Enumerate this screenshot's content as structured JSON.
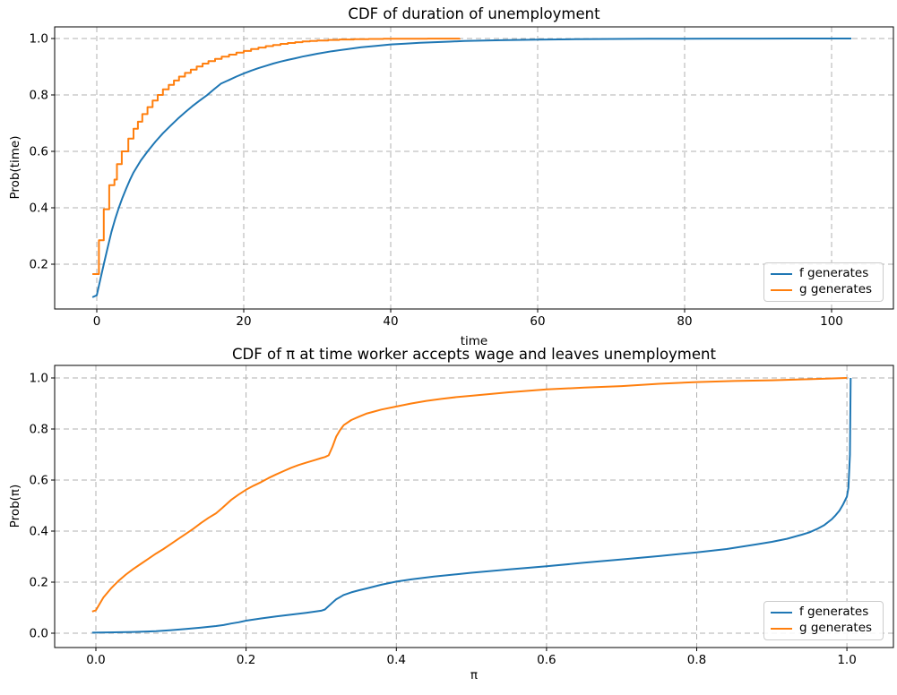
{
  "colors": {
    "f_series": "#1f77b4",
    "g_series": "#ff7f0e",
    "grid": "#b0b0b0",
    "spine": "#000000",
    "legend_border": "#cccccc",
    "background": "#ffffff"
  },
  "chart_data": [
    {
      "type": "line",
      "title": "CDF of duration of unemployment",
      "xlabel": "time",
      "ylabel": "Prob(time)",
      "grid": true,
      "xlim": [
        -5.73,
        108.42
      ],
      "ylim": [
        0.0413,
        1.0413
      ],
      "xticks": [
        {
          "value": 0,
          "label": "0"
        },
        {
          "value": 20,
          "label": "20"
        },
        {
          "value": 40,
          "label": "40"
        },
        {
          "value": 60,
          "label": "60"
        },
        {
          "value": 80,
          "label": "80"
        },
        {
          "value": 100,
          "label": "100"
        }
      ],
      "yticks": [
        {
          "value": 0.2,
          "label": "0.2"
        },
        {
          "value": 0.4,
          "label": "0.4"
        },
        {
          "value": 0.6,
          "label": "0.6"
        },
        {
          "value": 0.8,
          "label": "0.8"
        },
        {
          "value": 1.0,
          "label": "1.0"
        }
      ],
      "legend": [
        {
          "label": "f generates",
          "color": "#1f77b4"
        },
        {
          "label": "g generates",
          "color": "#ff7f0e"
        }
      ],
      "legend_position": "lower right",
      "series": [
        {
          "name": "f generates",
          "color": "#1f77b4",
          "mode": "line",
          "points": [
            [
              -0.6,
              0.083
            ],
            [
              0,
              0.09
            ],
            [
              0.5,
              0.148
            ],
            [
              1,
              0.205
            ],
            [
              1.5,
              0.261
            ],
            [
              2,
              0.315
            ],
            [
              2.5,
              0.36
            ],
            [
              3,
              0.4
            ],
            [
              3.5,
              0.436
            ],
            [
              4,
              0.468
            ],
            [
              4.5,
              0.498
            ],
            [
              5,
              0.525
            ],
            [
              6,
              0.568
            ],
            [
              7,
              0.603
            ],
            [
              8,
              0.635
            ],
            [
              9,
              0.664
            ],
            [
              10,
              0.69
            ],
            [
              11,
              0.715
            ],
            [
              12,
              0.738
            ],
            [
              13,
              0.76
            ],
            [
              14,
              0.78
            ],
            [
              15,
              0.799
            ],
            [
              16,
              0.821
            ],
            [
              16.9,
              0.84
            ],
            [
              18,
              0.853
            ],
            [
              19,
              0.865
            ],
            [
              20,
              0.876
            ],
            [
              21,
              0.886
            ],
            [
              22,
              0.895
            ],
            [
              23,
              0.903
            ],
            [
              24,
              0.911
            ],
            [
              25,
              0.918
            ],
            [
              26,
              0.924
            ],
            [
              27,
              0.93
            ],
            [
              28,
              0.936
            ],
            [
              29,
              0.941
            ],
            [
              30,
              0.946
            ],
            [
              32,
              0.955
            ],
            [
              34,
              0.962
            ],
            [
              36,
              0.969
            ],
            [
              38,
              0.974
            ],
            [
              40,
              0.979
            ],
            [
              42,
              0.982
            ],
            [
              44,
              0.985
            ],
            [
              46,
              0.987
            ],
            [
              48,
              0.989
            ],
            [
              50,
              0.991
            ],
            [
              55,
              0.994
            ],
            [
              60,
              0.996
            ],
            [
              65,
              0.9975
            ],
            [
              70,
              0.9985
            ],
            [
              75,
              0.999
            ],
            [
              80,
              0.9993
            ],
            [
              85,
              0.9996
            ],
            [
              90,
              0.9998
            ],
            [
              102.7,
              1.0
            ]
          ]
        },
        {
          "name": "g generates",
          "color": "#ff7f0e",
          "mode": "step",
          "points": [
            [
              -0.6,
              0.165
            ],
            [
              0.3,
              0.285
            ],
            [
              0.95,
              0.395
            ],
            [
              1.7,
              0.48
            ],
            [
              2.4,
              0.5
            ],
            [
              2.75,
              0.555
            ],
            [
              3.4,
              0.6
            ],
            [
              4.3,
              0.645
            ],
            [
              5,
              0.68
            ],
            [
              5.6,
              0.705
            ],
            [
              6.2,
              0.732
            ],
            [
              6.9,
              0.757
            ],
            [
              7.6,
              0.78
            ],
            [
              8.3,
              0.8
            ],
            [
              9,
              0.82
            ],
            [
              9.8,
              0.836
            ],
            [
              10.5,
              0.851
            ],
            [
              11.2,
              0.865
            ],
            [
              12,
              0.878
            ],
            [
              12.8,
              0.89
            ],
            [
              13.6,
              0.901
            ],
            [
              14.4,
              0.911
            ],
            [
              15.2,
              0.92
            ],
            [
              16.1,
              0.928
            ],
            [
              17,
              0.936
            ],
            [
              18,
              0.943
            ],
            [
              19,
              0.95
            ],
            [
              20,
              0.956
            ],
            [
              21,
              0.963
            ],
            [
              22,
              0.968
            ],
            [
              23,
              0.973
            ],
            [
              24,
              0.977
            ],
            [
              25,
              0.981
            ],
            [
              26,
              0.984
            ],
            [
              27,
              0.987
            ],
            [
              28,
              0.9895
            ],
            [
              29,
              0.9915
            ],
            [
              30,
              0.993
            ],
            [
              31.5,
              0.995
            ],
            [
              33,
              0.9965
            ],
            [
              35,
              0.9975
            ],
            [
              37,
              0.9985
            ],
            [
              39,
              0.999
            ],
            [
              42,
              0.9995
            ],
            [
              45,
              0.9998
            ],
            [
              49.4,
              1.0
            ]
          ]
        }
      ]
    },
    {
      "type": "line",
      "title": "CDF of π at time worker accepts wage and leaves unemployment",
      "xlabel": "π",
      "ylabel": "Prob(π)",
      "grid": true,
      "xlim": [
        -0.0549,
        1.0619
      ],
      "ylim": [
        -0.0561,
        1.0491
      ],
      "xticks": [
        {
          "value": 0.0,
          "label": "0.0"
        },
        {
          "value": 0.2,
          "label": "0.2"
        },
        {
          "value": 0.4,
          "label": "0.4"
        },
        {
          "value": 0.6,
          "label": "0.6"
        },
        {
          "value": 0.8,
          "label": "0.8"
        },
        {
          "value": 1.0,
          "label": "1.0"
        }
      ],
      "yticks": [
        {
          "value": 0.0,
          "label": "0.0"
        },
        {
          "value": 0.2,
          "label": "0.2"
        },
        {
          "value": 0.4,
          "label": "0.4"
        },
        {
          "value": 0.6,
          "label": "0.6"
        },
        {
          "value": 0.8,
          "label": "0.8"
        },
        {
          "value": 1.0,
          "label": "1.0"
        }
      ],
      "legend": [
        {
          "label": "f generates",
          "color": "#1f77b4"
        },
        {
          "label": "g generates",
          "color": "#ff7f0e"
        }
      ],
      "legend_position": "lower right",
      "series": [
        {
          "name": "f generates",
          "color": "#1f77b4",
          "mode": "line",
          "points": [
            [
              -0.005,
              0.002
            ],
            [
              0.05,
              0.005
            ],
            [
              0.08,
              0.008
            ],
            [
              0.1,
              0.012
            ],
            [
              0.12,
              0.017
            ],
            [
              0.14,
              0.022
            ],
            [
              0.16,
              0.028
            ],
            [
              0.17,
              0.032
            ],
            [
              0.18,
              0.038
            ],
            [
              0.19,
              0.043
            ],
            [
              0.2,
              0.049
            ],
            [
              0.22,
              0.058
            ],
            [
              0.24,
              0.066
            ],
            [
              0.26,
              0.073
            ],
            [
              0.28,
              0.08
            ],
            [
              0.3,
              0.088
            ],
            [
              0.305,
              0.093
            ],
            [
              0.315,
              0.12
            ],
            [
              0.32,
              0.133
            ],
            [
              0.33,
              0.15
            ],
            [
              0.34,
              0.16
            ],
            [
              0.35,
              0.168
            ],
            [
              0.36,
              0.175
            ],
            [
              0.38,
              0.19
            ],
            [
              0.4,
              0.202
            ],
            [
              0.42,
              0.211
            ],
            [
              0.45,
              0.222
            ],
            [
              0.48,
              0.231
            ],
            [
              0.5,
              0.237
            ],
            [
              0.55,
              0.25
            ],
            [
              0.6,
              0.262
            ],
            [
              0.65,
              0.276
            ],
            [
              0.7,
              0.289
            ],
            [
              0.75,
              0.302
            ],
            [
              0.8,
              0.317
            ],
            [
              0.84,
              0.33
            ],
            [
              0.88,
              0.348
            ],
            [
              0.9,
              0.358
            ],
            [
              0.92,
              0.37
            ],
            [
              0.94,
              0.386
            ],
            [
              0.95,
              0.395
            ],
            [
              0.96,
              0.408
            ],
            [
              0.97,
              0.424
            ],
            [
              0.98,
              0.447
            ],
            [
              0.985,
              0.462
            ],
            [
              0.99,
              0.48
            ],
            [
              0.995,
              0.505
            ],
            [
              1,
              0.535
            ],
            [
              1.002,
              0.57
            ],
            [
              1.004,
              0.7
            ],
            [
              1.005,
              1.0
            ]
          ]
        },
        {
          "name": "g generates",
          "color": "#ff7f0e",
          "mode": "line",
          "points": [
            [
              -0.005,
              0.085
            ],
            [
              0,
              0.09
            ],
            [
              0.005,
              0.115
            ],
            [
              0.01,
              0.14
            ],
            [
              0.02,
              0.175
            ],
            [
              0.03,
              0.205
            ],
            [
              0.04,
              0.23
            ],
            [
              0.05,
              0.252
            ],
            [
              0.06,
              0.272
            ],
            [
              0.07,
              0.292
            ],
            [
              0.08,
              0.312
            ],
            [
              0.09,
              0.33
            ],
            [
              0.1,
              0.35
            ],
            [
              0.11,
              0.37
            ],
            [
              0.12,
              0.39
            ],
            [
              0.13,
              0.41
            ],
            [
              0.14,
              0.432
            ],
            [
              0.15,
              0.452
            ],
            [
              0.16,
              0.47
            ],
            [
              0.168,
              0.49
            ],
            [
              0.18,
              0.522
            ],
            [
              0.19,
              0.543
            ],
            [
              0.2,
              0.562
            ],
            [
              0.21,
              0.578
            ],
            [
              0.22,
              0.592
            ],
            [
              0.23,
              0.608
            ],
            [
              0.24,
              0.622
            ],
            [
              0.25,
              0.635
            ],
            [
              0.26,
              0.648
            ],
            [
              0.27,
              0.659
            ],
            [
              0.28,
              0.668
            ],
            [
              0.29,
              0.677
            ],
            [
              0.3,
              0.686
            ],
            [
              0.305,
              0.69
            ],
            [
              0.31,
              0.697
            ],
            [
              0.315,
              0.73
            ],
            [
              0.32,
              0.77
            ],
            [
              0.325,
              0.795
            ],
            [
              0.33,
              0.815
            ],
            [
              0.34,
              0.835
            ],
            [
              0.35,
              0.848
            ],
            [
              0.36,
              0.86
            ],
            [
              0.37,
              0.868
            ],
            [
              0.38,
              0.876
            ],
            [
              0.4,
              0.888
            ],
            [
              0.42,
              0.9
            ],
            [
              0.44,
              0.91
            ],
            [
              0.46,
              0.918
            ],
            [
              0.48,
              0.925
            ],
            [
              0.5,
              0.93
            ],
            [
              0.55,
              0.944
            ],
            [
              0.6,
              0.955
            ],
            [
              0.65,
              0.962
            ],
            [
              0.7,
              0.968
            ],
            [
              0.75,
              0.977
            ],
            [
              0.8,
              0.984
            ],
            [
              0.85,
              0.988
            ],
            [
              0.9,
              0.991
            ],
            [
              0.95,
              0.995
            ],
            [
              1,
              1.0
            ]
          ]
        }
      ]
    }
  ]
}
